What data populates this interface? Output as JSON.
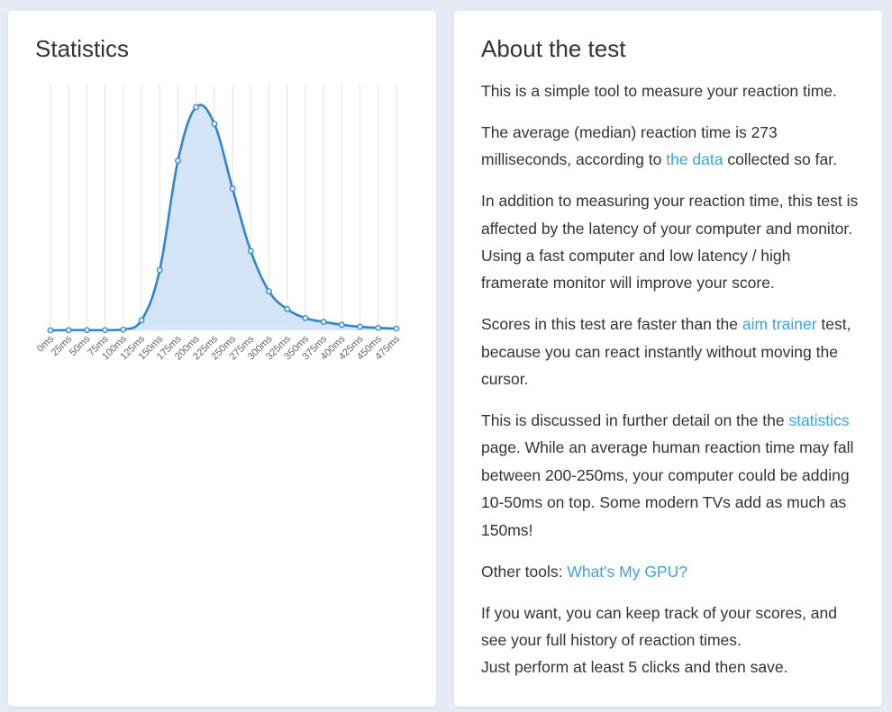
{
  "stats": {
    "title": "Statistics"
  },
  "chart_data": {
    "type": "area",
    "categories": [
      "0ms",
      "25ms",
      "50ms",
      "75ms",
      "100ms",
      "125ms",
      "150ms",
      "175ms",
      "200ms",
      "225ms",
      "250ms",
      "275ms",
      "300ms",
      "325ms",
      "350ms",
      "375ms",
      "400ms",
      "425ms",
      "450ms",
      "475ms"
    ],
    "values": [
      0.0,
      0.1,
      0.1,
      0.1,
      0.3,
      4.5,
      27.0,
      76.0,
      100.0,
      92.5,
      63.5,
      35.5,
      17.5,
      9.5,
      5.5,
      3.8,
      2.5,
      1.6,
      1.1,
      0.8
    ],
    "ylim": [
      0,
      100
    ],
    "grid": "vertical",
    "line_color": "#3385cf",
    "fill_color": "#d3e5f6"
  },
  "about": {
    "title": "About the test",
    "p1": "This is a simple tool to measure your reaction time.",
    "p2a": "The average (median) reaction time is 273 milliseconds, according to ",
    "p2_link": "the data",
    "p2b": " collected so far.",
    "p3": "In addition to measuring your reaction time, this test is affected by the latency of your computer and monitor. Using a fast computer and low latency / high framerate monitor will improve your score.",
    "p4a": "Scores in this test are faster than the ",
    "p4_link": "aim trainer",
    "p4b": " test, because you can react instantly without moving the cursor.",
    "p5a": "This is discussed in further detail on the the ",
    "p5_link": "statistics",
    "p5b": " page. While an average human reaction time may fall between 200-250ms, your computer could be adding 10-50ms on top. Some modern TVs add as much as 150ms!",
    "p6a": "Other tools: ",
    "p6_link": "What's My GPU?",
    "p7a": "If you want, you can keep track of your scores, and see your full history of reaction times.",
    "p7b": "Just perform at least 5 clicks and then save."
  }
}
